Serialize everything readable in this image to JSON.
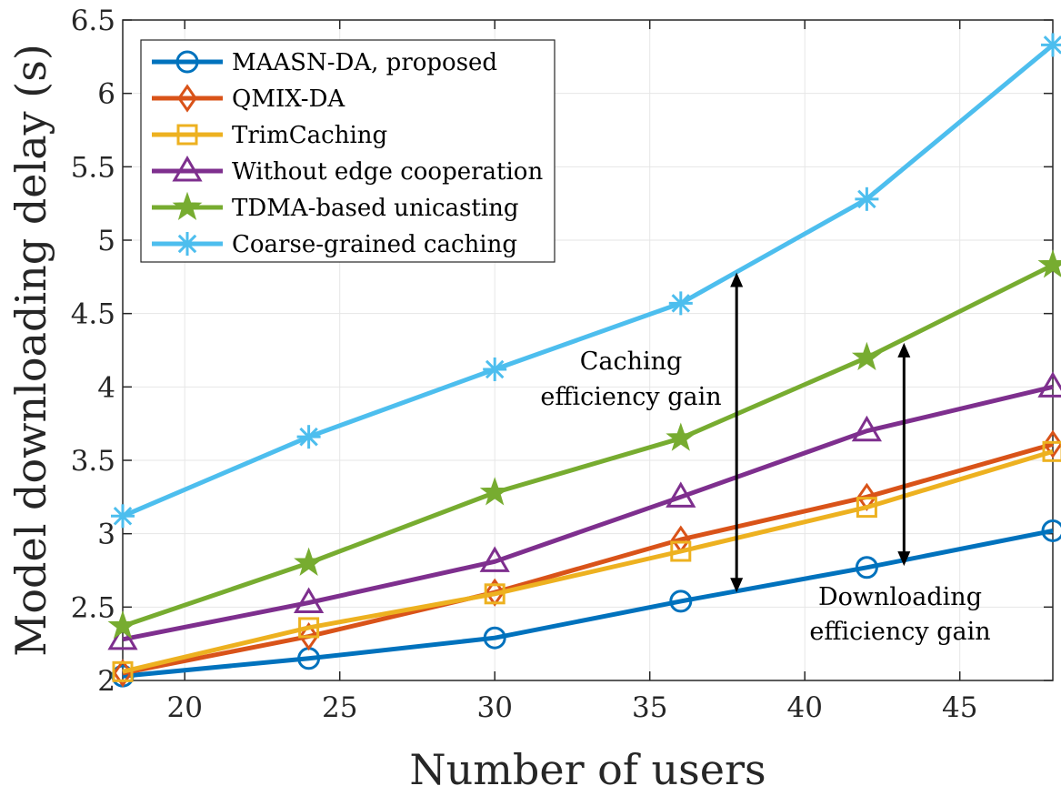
{
  "chart_data": {
    "type": "line",
    "title": "",
    "xlabel": "Number of users",
    "ylabel": "Model downloading delay (s)",
    "xlim": [
      18,
      48
    ],
    "ylim": [
      2,
      6.5
    ],
    "grid": true,
    "legend_position": "top-left",
    "x": [
      18,
      24,
      30,
      36,
      42,
      48
    ],
    "x_ticks": [
      "20",
      "25",
      "30",
      "35",
      "40",
      "45"
    ],
    "y_ticks": [
      "2",
      "2.5",
      "3",
      "3.5",
      "4",
      "4.5",
      "5",
      "5.5",
      "6",
      "6.5"
    ],
    "series": [
      {
        "name": "MAASN-DA, proposed",
        "marker": "circle",
        "color": "#0072BD",
        "values": [
          2.03,
          2.15,
          2.29,
          2.54,
          2.77,
          3.02
        ]
      },
      {
        "name": "QMIX-DA",
        "marker": "diamond",
        "color": "#D95319",
        "values": [
          2.05,
          2.3,
          2.6,
          2.96,
          3.25,
          3.61
        ]
      },
      {
        "name": "TrimCaching",
        "marker": "square",
        "color": "#EDB120",
        "values": [
          2.06,
          2.36,
          2.59,
          2.88,
          3.18,
          3.56
        ]
      },
      {
        "name": "Without edge cooperation",
        "marker": "triangle",
        "color": "#7E2F8E",
        "values": [
          2.28,
          2.53,
          2.81,
          3.25,
          3.7,
          4.0
        ]
      },
      {
        "name": "TDMA-based unicasting",
        "marker": "star",
        "color": "#77AC30",
        "values": [
          2.37,
          2.8,
          3.28,
          3.65,
          4.2,
          4.83
        ]
      },
      {
        "name": "Coarse-grained caching",
        "marker": "asterisk",
        "color": "#4DBEEE",
        "values": [
          3.12,
          3.66,
          4.12,
          4.57,
          5.28,
          6.33
        ]
      }
    ],
    "annotations": [
      {
        "lines": [
          "Caching",
          "efficiency gain"
        ],
        "arrow_x": 37.8,
        "arrow_y": [
          2.6,
          4.78
        ]
      },
      {
        "lines": [
          "Downloading",
          "efficiency gain"
        ],
        "arrow_x": 43.2,
        "arrow_y": [
          2.78,
          4.3
        ]
      }
    ]
  }
}
